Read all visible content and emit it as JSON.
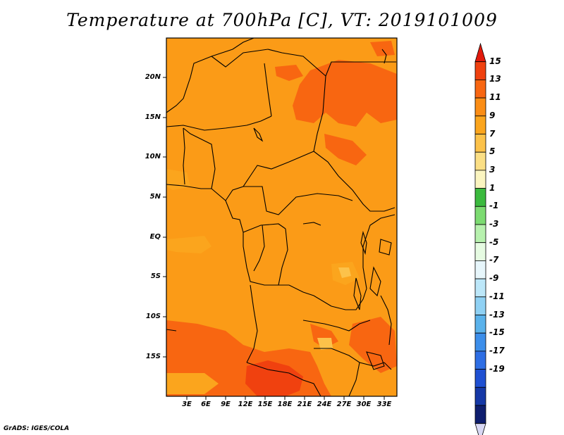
{
  "title": "Temperature at 700hPa [C], VT: 2019101009",
  "credit": "GrADS: IGES/COLA",
  "lat_labels": [
    "20N",
    "15N",
    "10N",
    "5N",
    "EQ",
    "5S",
    "10S",
    "15S"
  ],
  "lon_labels": [
    "3E",
    "6E",
    "9E",
    "12E",
    "15E",
    "18E",
    "21E",
    "24E",
    "27E",
    "30E",
    "33E"
  ],
  "colorbar": {
    "labels": [
      "15",
      "13",
      "11",
      "9",
      "7",
      "5",
      "3",
      "1",
      "-1",
      "-3",
      "-5",
      "-7",
      "-9",
      "-11",
      "-13",
      "-15",
      "-17",
      "-19"
    ],
    "colors": [
      "#e21a0c",
      "#f0410f",
      "#f86611",
      "#fb8d15",
      "#fba51d",
      "#fcc24a",
      "#fbdf85",
      "#fbf5c0",
      "#3bba3e",
      "#7cdb71",
      "#b7f1ae",
      "#e6fbe2",
      "#e7f6fb",
      "#bce7f9",
      "#8fd1f4",
      "#5ab2eb",
      "#3c8eea",
      "#2e6ee4",
      "#1f50d2",
      "#1538a6",
      "#0e1e6e",
      "#d8d8f4"
    ]
  },
  "map": {
    "region": "Central and West-Central Africa",
    "base_color": "#fb9b17",
    "warm_color": "#f86611",
    "hot_color": "#f0410f",
    "cool_color": "#fba51d",
    "coolest_color": "#fcc24a"
  }
}
